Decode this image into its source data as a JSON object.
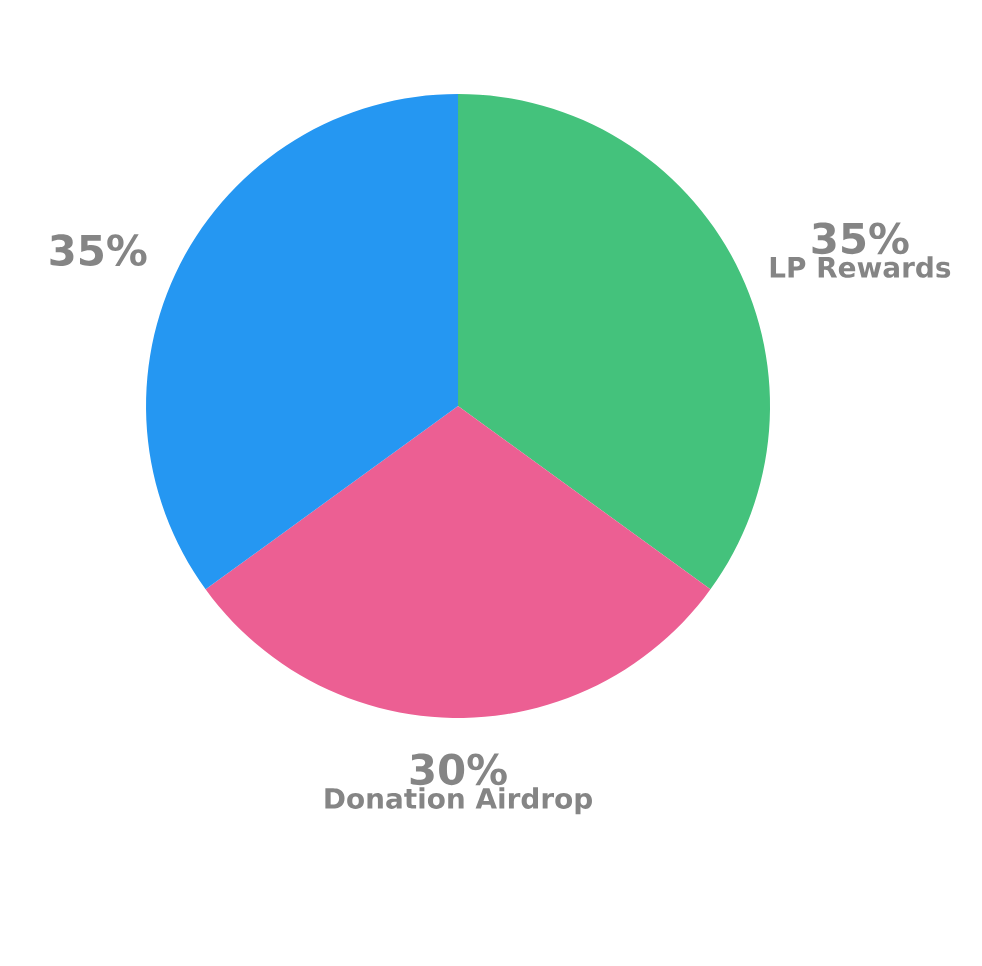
{
  "chart_data": {
    "type": "pie",
    "categories": [
      "LP Rewards",
      "Donation Airdrop",
      null
    ],
    "values": [
      35,
      30,
      35
    ],
    "value_labels": [
      "35%",
      "30%",
      "35%"
    ],
    "colors": [
      "#44c27c",
      "#ec5f93",
      "#2597f2"
    ]
  }
}
